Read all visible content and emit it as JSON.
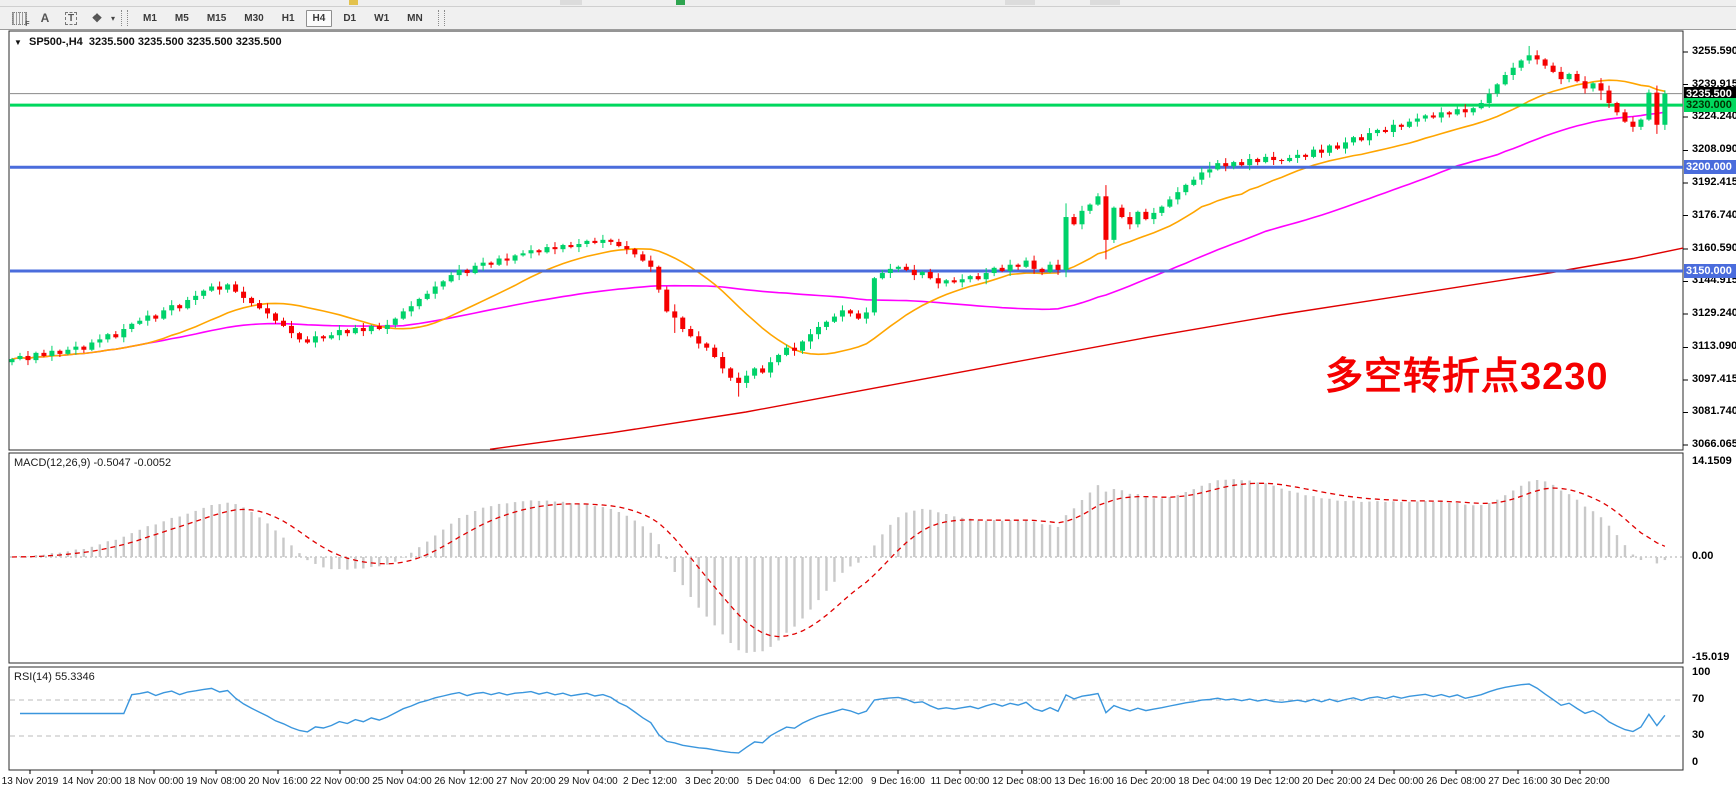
{
  "toolbar": {
    "tools": [
      {
        "id": "grid-tool",
        "glyph": "grid"
      },
      {
        "id": "text-label-tool",
        "glyph": "A"
      },
      {
        "id": "text-box-tool",
        "glyph": "T"
      },
      {
        "id": "arrow-shapes-tool",
        "glyph": "❖"
      }
    ],
    "timeframes": [
      "M1",
      "M5",
      "M15",
      "M30",
      "H1",
      "H4",
      "D1",
      "W1",
      "MN"
    ],
    "selected_timeframe": "H4"
  },
  "header": {
    "symbol": "SP500-,H4",
    "ohlc": "3235.500 3235.500 3235.500 3235.500"
  },
  "annotation": {
    "text": "多空转折点3230",
    "color": "#f50000"
  },
  "chart_data": {
    "type": "candlestick",
    "symbol": "SP500-",
    "timeframe": "H4",
    "title": "SP500-,H4 3235.500 3235.500 3235.500 3235.500",
    "current_price": {
      "value": 3235.5,
      "label": "3235.500",
      "badge_bg": "#000000",
      "badge_fg": "#ffffff",
      "line_color": "#8a8a8a"
    },
    "hlines": [
      {
        "value": 3230.0,
        "label": "3230.000",
        "color": "#00d85e",
        "text_color": "#003300"
      },
      {
        "value": 3200.0,
        "label": "3200.000",
        "color": "#4a6cdc",
        "text_color": "#ffffff"
      },
      {
        "value": 3150.0,
        "label": "3150.000",
        "color": "#4a6cdc",
        "text_color": "#ffffff"
      }
    ],
    "y_axis_labels": [
      "3255.590",
      "3239.915",
      "3224.240",
      "3208.090",
      "3192.415",
      "3176.740",
      "3160.590",
      "3144.915",
      "3129.240",
      "3113.090",
      "3097.415",
      "3081.740",
      "3066.065"
    ],
    "x_axis_labels": [
      "13 Nov 2019",
      "14 Nov 20:00",
      "18 Nov 00:00",
      "19 Nov 08:00",
      "20 Nov 16:00",
      "22 Nov 00:00",
      "25 Nov 04:00",
      "26 Nov 12:00",
      "27 Nov 20:00",
      "29 Nov 04:00",
      "2 Dec 12:00",
      "3 Dec 20:00",
      "5 Dec 04:00",
      "6 Dec 12:00",
      "9 Dec 16:00",
      "11 Dec 00:00",
      "12 Dec 08:00",
      "13 Dec 16:00",
      "16 Dec 20:00",
      "18 Dec 04:00",
      "19 Dec 12:00",
      "20 Dec 20:00",
      "24 Dec 00:00",
      "26 Dec 08:00",
      "27 Dec 16:00",
      "30 Dec 20:00"
    ],
    "closes": [
      3107.5,
      3109,
      3107,
      3110.5,
      3109,
      3111.5,
      3110,
      3112,
      3113.5,
      3112,
      3115.5,
      3117,
      3119.5,
      3118,
      3122,
      3124.5,
      3126,
      3128.5,
      3127,
      3131,
      3133.5,
      3132,
      3136,
      3138,
      3140.5,
      3142.5,
      3141,
      3143.5,
      3140,
      3137,
      3134.5,
      3132,
      3129.5,
      3126,
      3123.5,
      3120,
      3117,
      3115.5,
      3118.5,
      3117.5,
      3119,
      3121.5,
      3120,
      3122.5,
      3121,
      3123.5,
      3122,
      3124,
      3127,
      3130.5,
      3133,
      3136.5,
      3139,
      3142.5,
      3145,
      3148,
      3150.5,
      3149,
      3152.5,
      3154,
      3153,
      3156,
      3155,
      3157.5,
      3158.5,
      3160,
      3159,
      3161.5,
      3160.5,
      3162.5,
      3161.5,
      3163,
      3164.5,
      3163.5,
      3165,
      3164,
      3162,
      3160.5,
      3158,
      3155,
      3152,
      3141,
      3130.5,
      3127.5,
      3122,
      3118.5,
      3115,
      3113,
      3108.5,
      3103,
      3098.5,
      3096,
      3099.5,
      3103,
      3101,
      3106,
      3109.5,
      3113,
      3111.5,
      3116,
      3119.5,
      3123,
      3125.5,
      3128,
      3131,
      3129.5,
      3127,
      3130,
      3146.5,
      3149,
      3151,
      3152,
      3150.5,
      3148,
      3149.5,
      3146.5,
      3144,
      3145.5,
      3144.5,
      3146,
      3147.5,
      3146,
      3149,
      3151.5,
      3150,
      3153,
      3152,
      3155,
      3151,
      3149.5,
      3153,
      3150.5,
      3176,
      3172.5,
      3179,
      3182,
      3186,
      3165,
      3180.5,
      3176,
      3172.5,
      3178.5,
      3175,
      3178,
      3181,
      3184.5,
      3188,
      3191.5,
      3194,
      3197.5,
      3199,
      3202,
      3200.5,
      3202.5,
      3201,
      3204,
      3202.5,
      3205,
      3203.5,
      3203,
      3204.5,
      3206,
      3205,
      3208.5,
      3207,
      3210.5,
      3209,
      3212,
      3214.5,
      3213,
      3216.5,
      3218,
      3217,
      3220.5,
      3219.5,
      3222,
      3223.5,
      3225,
      3224,
      3226.5,
      3225.5,
      3228,
      3226.5,
      3228.5,
      3231,
      3235.5,
      3240,
      3244.5,
      3248,
      3251.5,
      3254,
      3252,
      3249,
      3246,
      3242.5,
      3245,
      3241.5,
      3238,
      3240.5,
      3237,
      3231,
      3226.5,
      3222,
      3219.5,
      3223,
      3236,
      3220.5,
      3235.5
    ],
    "open_first": 3106,
    "colors": {
      "bull": "#00d26a",
      "bear": "#f50000",
      "ma_fast": "#ffa500",
      "ma_mid": "#ff00ff",
      "ma_slow": "#e00000",
      "macd_bar": "#c9c9c9",
      "macd_signal": "#e00000",
      "rsi_line": "#3a96dd"
    },
    "moving_averages": {
      "fast_period": 18,
      "mid_period": 50,
      "slow_points": [
        [
          0.287,
          3064
        ],
        [
          0.36,
          3072
        ],
        [
          0.44,
          3082
        ],
        [
          0.52,
          3094
        ],
        [
          0.6,
          3106
        ],
        [
          0.68,
          3118
        ],
        [
          0.76,
          3129
        ],
        [
          0.84,
          3139
        ],
        [
          0.92,
          3149
        ],
        [
          0.97,
          3156
        ],
        [
          1.0,
          3161
        ]
      ]
    },
    "macd": {
      "label": "MACD(12,26,9)",
      "values_text": "-0.5047 -0.0052",
      "axis_labels": [
        "14.1509",
        "0.00",
        "-15.019"
      ],
      "fast": 12,
      "slow": 26,
      "signal": 9
    },
    "rsi": {
      "label": "RSI(14)",
      "value_text": "55.3346",
      "period": 14,
      "axis_labels": [
        "100",
        "70",
        "30",
        "0"
      ],
      "levels": [
        70,
        30
      ]
    }
  }
}
